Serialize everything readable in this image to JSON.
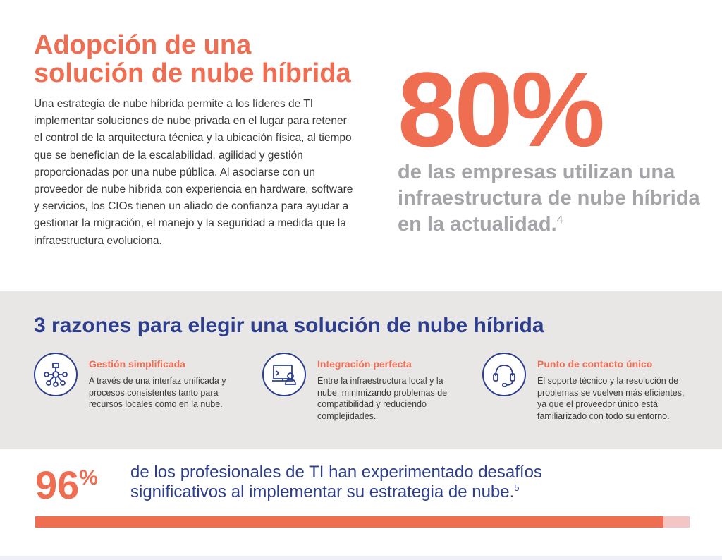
{
  "hero": {
    "title_line1": "Adopción de una",
    "title_line2": "solución de nube híbrida",
    "body": "Una estrategia de nube híbrida permite a los líderes de TI implementar soluciones de nube privada en el lugar para retener el control de la arquitectura técnica y la ubicación física, al tiempo que se benefician de la escalabilidad, agilidad y gestión proporcionadas por una nube pública. Al asociarse con un proveedor de nube híbrida con experiencia en hardware, software y servicios, los CIOs tienen un aliado de confianza para ayudar a gestionar la migración, el manejo y la seguridad a medida que la infraestructura evoluciona."
  },
  "stat1": {
    "value": "80%",
    "caption": "de las empresas utilizan una infraestructura de nube híbrida en la actualidad.",
    "footnote": "4"
  },
  "reasons": {
    "title": "3 razones para elegir una solución de nube híbrida",
    "items": [
      {
        "heading": "Gestión simplificada",
        "text": "A través de una interfaz unificada y procesos consistentes tanto para recursos locales como en la nube.",
        "icon": "network-nodes-icon"
      },
      {
        "heading": "Integración perfecta",
        "text": "Entre la infraestructura local y la nube, minimizando problemas de compatibilidad y reduciendo complejidades.",
        "icon": "user-monitor-icon"
      },
      {
        "heading": "Punto de contacto único",
        "text": "El soporte técnico y la resolución de problemas se vuelven más eficientes, ya que el proveedor único está familiarizado con todo su entorno.",
        "icon": "headset-icon"
      }
    ]
  },
  "stat2": {
    "number": "96",
    "sign": "%",
    "text": "de los profesionales de TI han experimentado desafíos significativos al implementar su estrategia de nube.",
    "footnote": "5",
    "progress": 0.96
  },
  "colors": {
    "accent": "#ef6e52",
    "navy": "#2d3f8c",
    "gray": "#a4a4a9",
    "band": "#e9e6e6"
  }
}
